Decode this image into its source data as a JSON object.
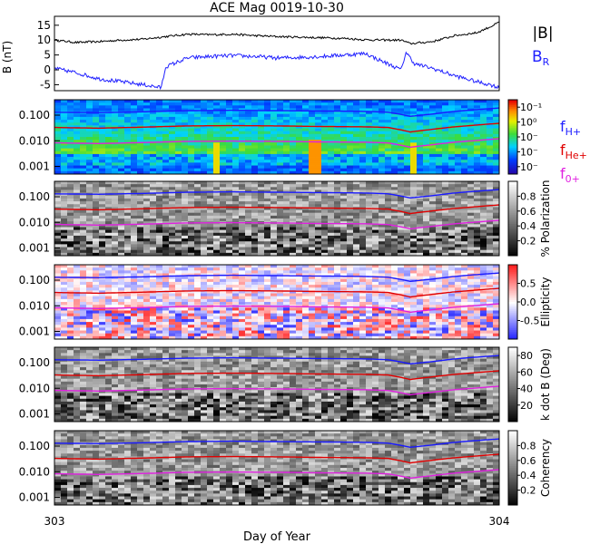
{
  "title": "ACE Mag 0019-10-30",
  "x_axis": {
    "label": "Day of Year",
    "ticks": [
      "303",
      "304"
    ],
    "range": [
      303,
      304
    ]
  },
  "chart_data": [
    {
      "type": "line",
      "name": "mag-panel",
      "ylabel": "B (nT)",
      "ylim": [
        -7,
        18
      ],
      "yticks": [
        "15",
        "10",
        "5",
        "0",
        "-5"
      ],
      "ytick_values": [
        15,
        10,
        5,
        0,
        -5
      ],
      "legend": [
        "|B|",
        "B_R"
      ],
      "series": [
        {
          "name": "|B|",
          "color": "#000000",
          "x": [
            303.0,
            303.05,
            303.1,
            303.15,
            303.2,
            303.25,
            303.3,
            303.35,
            303.4,
            303.45,
            303.5,
            303.55,
            303.6,
            303.65,
            303.7,
            303.75,
            303.78,
            303.8,
            303.85,
            303.9,
            303.95,
            303.98,
            304.0
          ],
          "values": [
            10,
            9.2,
            9.5,
            10,
            10.3,
            11.2,
            12,
            11.8,
            12,
            11.5,
            11.2,
            11,
            10.8,
            10.6,
            10.1,
            10,
            10,
            8.8,
            9.5,
            11.5,
            12.5,
            14.5,
            16
          ]
        },
        {
          "name": "B_R",
          "color": "#2020ff",
          "x": [
            303.0,
            303.05,
            303.1,
            303.15,
            303.2,
            303.24,
            303.25,
            303.3,
            303.35,
            303.4,
            303.45,
            303.5,
            303.55,
            303.6,
            303.65,
            303.7,
            303.72,
            303.75,
            303.78,
            303.79,
            303.81,
            303.85,
            303.9,
            303.95,
            303.98,
            304.0
          ],
          "values": [
            0.5,
            -1,
            -3,
            -4,
            -5,
            -6,
            1,
            4,
            4.5,
            4.8,
            4.5,
            4,
            4.2,
            4.5,
            5,
            5.5,
            4,
            2,
            0,
            6,
            2,
            0.5,
            -2,
            -4,
            -5,
            -6
          ]
        }
      ]
    },
    {
      "type": "heatmap",
      "name": "power-spectrum",
      "ylim_log": [
        0.0005,
        0.4
      ],
      "yticks": [
        "0.100",
        "0.010",
        "0.001"
      ],
      "ytick_values": [
        0.1,
        0.01,
        0.001
      ],
      "colorbar": {
        "scale": "rainbow",
        "ticks": [
          "10⁻¹",
          "10⁰",
          "10⁻",
          "10⁻",
          "10⁻"
        ]
      },
      "legend": [
        "f_H+",
        "f_He+",
        "f_O+"
      ],
      "legend_colors": [
        "#2020ff",
        "#e00000",
        "#e020e0"
      ]
    },
    {
      "type": "heatmap",
      "name": "polarization",
      "ylim_log": [
        0.0005,
        0.4
      ],
      "yticks": [
        "0.100",
        "0.010",
        "0.001"
      ],
      "ytick_values": [
        0.1,
        0.01,
        0.001
      ],
      "colorbar": {
        "scale": "gray",
        "label": "% Polarization",
        "ticks": [
          "0.8",
          "0.6",
          "0.4",
          "0.2"
        ],
        "tick_values": [
          0.8,
          0.6,
          0.4,
          0.2
        ],
        "range": [
          0,
          1
        ]
      }
    },
    {
      "type": "heatmap",
      "name": "ellipticity",
      "ylim_log": [
        0.0005,
        0.4
      ],
      "yticks": [
        "0.100",
        "0.010",
        "0.001"
      ],
      "ytick_values": [
        0.1,
        0.01,
        0.001
      ],
      "colorbar": {
        "scale": "bwr",
        "label": "Ellipticity",
        "ticks": [
          "0.5",
          "0.0",
          "-0.5"
        ],
        "tick_values": [
          0.5,
          0.0,
          -0.5
        ],
        "range": [
          -1,
          1
        ]
      }
    },
    {
      "type": "heatmap",
      "name": "k-dot-b",
      "ylim_log": [
        0.0005,
        0.4
      ],
      "yticks": [
        "0.100",
        "0.010",
        "0.001"
      ],
      "ytick_values": [
        0.1,
        0.01,
        0.001
      ],
      "colorbar": {
        "scale": "gray",
        "label": "k dot B (Deg)",
        "ticks": [
          "80",
          "60",
          "40",
          "20"
        ],
        "tick_values": [
          80,
          60,
          40,
          20
        ],
        "range": [
          0,
          90
        ]
      }
    },
    {
      "type": "heatmap",
      "name": "coherency",
      "ylim_log": [
        0.0005,
        0.4
      ],
      "yticks": [
        "0.100",
        "0.010",
        "0.001"
      ],
      "ytick_values": [
        0.1,
        0.01,
        0.001
      ],
      "colorbar": {
        "scale": "gray",
        "label": "Coherency",
        "ticks": [
          "0.8",
          "0.6",
          "0.4",
          "0.2"
        ],
        "tick_values": [
          0.8,
          0.6,
          0.4,
          0.2
        ],
        "range": [
          0,
          1
        ]
      }
    }
  ],
  "gyro_lines": {
    "x": [
      303.0,
      303.1,
      303.2,
      303.3,
      303.4,
      303.5,
      303.6,
      303.7,
      303.75,
      303.8,
      303.85,
      303.9,
      303.95,
      304.0
    ],
    "fH": [
      0.13,
      0.125,
      0.135,
      0.15,
      0.155,
      0.15,
      0.145,
      0.14,
      0.13,
      0.09,
      0.11,
      0.14,
      0.165,
      0.19
    ],
    "fHe": [
      0.033,
      0.031,
      0.034,
      0.038,
      0.039,
      0.038,
      0.036,
      0.035,
      0.033,
      0.022,
      0.028,
      0.035,
      0.041,
      0.048
    ],
    "fO": [
      0.0083,
      0.0078,
      0.0085,
      0.0095,
      0.0097,
      0.0095,
      0.009,
      0.0088,
      0.0082,
      0.0056,
      0.007,
      0.0088,
      0.0103,
      0.012
    ],
    "colors": {
      "fH": "#1a1aff",
      "fHe": "#e00000",
      "fO": "#e020e0"
    }
  }
}
